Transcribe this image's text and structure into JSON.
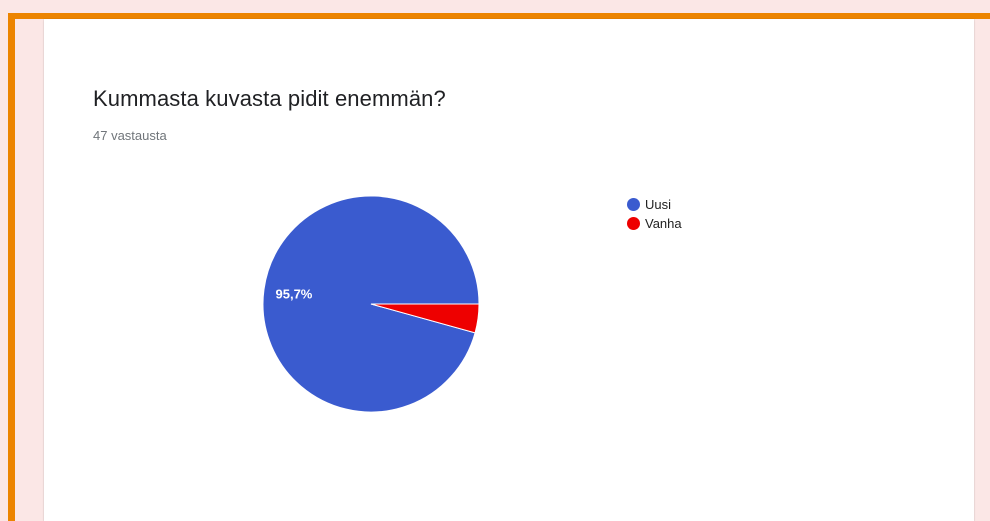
{
  "question": {
    "title": "Kummasta kuvasta pidit enemmän?",
    "responses": "47 vastausta"
  },
  "colors": {
    "frame": "#ec8400",
    "background": "#fbe7e6",
    "card": "#ffffff"
  },
  "chart_data": {
    "type": "pie",
    "categories": [
      "Uusi",
      "Vanha"
    ],
    "values": [
      95.7,
      4.3
    ],
    "colors": [
      "#3a5bcf",
      "#ee0000"
    ],
    "data_labels": [
      "95,7%",
      ""
    ],
    "legend_position": "right",
    "legend": [
      {
        "label": "Uusi",
        "color": "#3a5bcf"
      },
      {
        "label": "Vanha",
        "color": "#ee0000"
      }
    ]
  }
}
